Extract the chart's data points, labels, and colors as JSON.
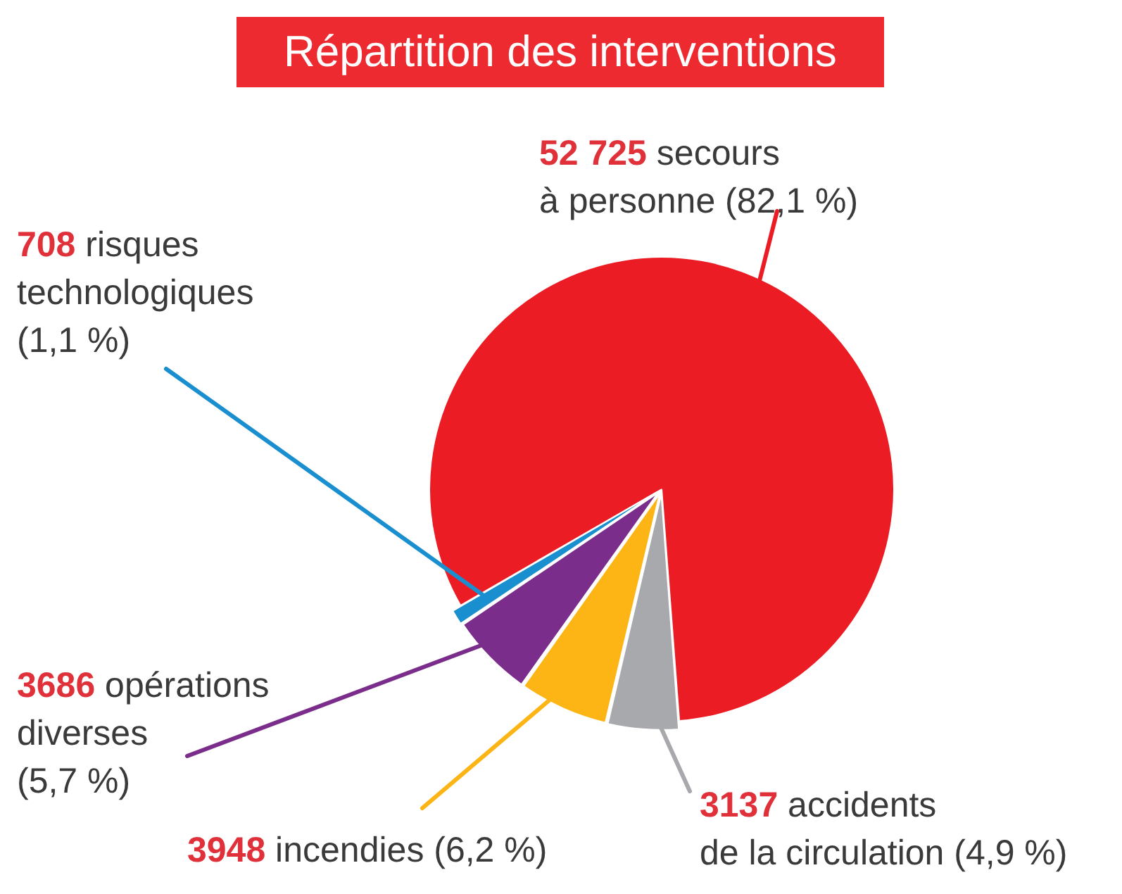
{
  "chart_data": {
    "type": "pie",
    "title": "Répartition des interventions",
    "categories": [
      "secours\nà personne (82,1 %)",
      "accidents\nde la circulation (4,9 %)",
      "incendies (6,2 %)",
      "opérations\ndiverses\n(5,7 %)",
      "risques\ntechnologiques\n(1,1 %)"
    ],
    "values": [
      52725,
      3137,
      3948,
      3686,
      708
    ],
    "value_labels": [
      "52 725",
      "3137",
      "3948",
      "3686",
      "708"
    ],
    "colors": [
      "#ec1c24",
      "#a7a9ac",
      "#fdb515",
      "#7b2d8b",
      "#1a8fd0"
    ]
  }
}
